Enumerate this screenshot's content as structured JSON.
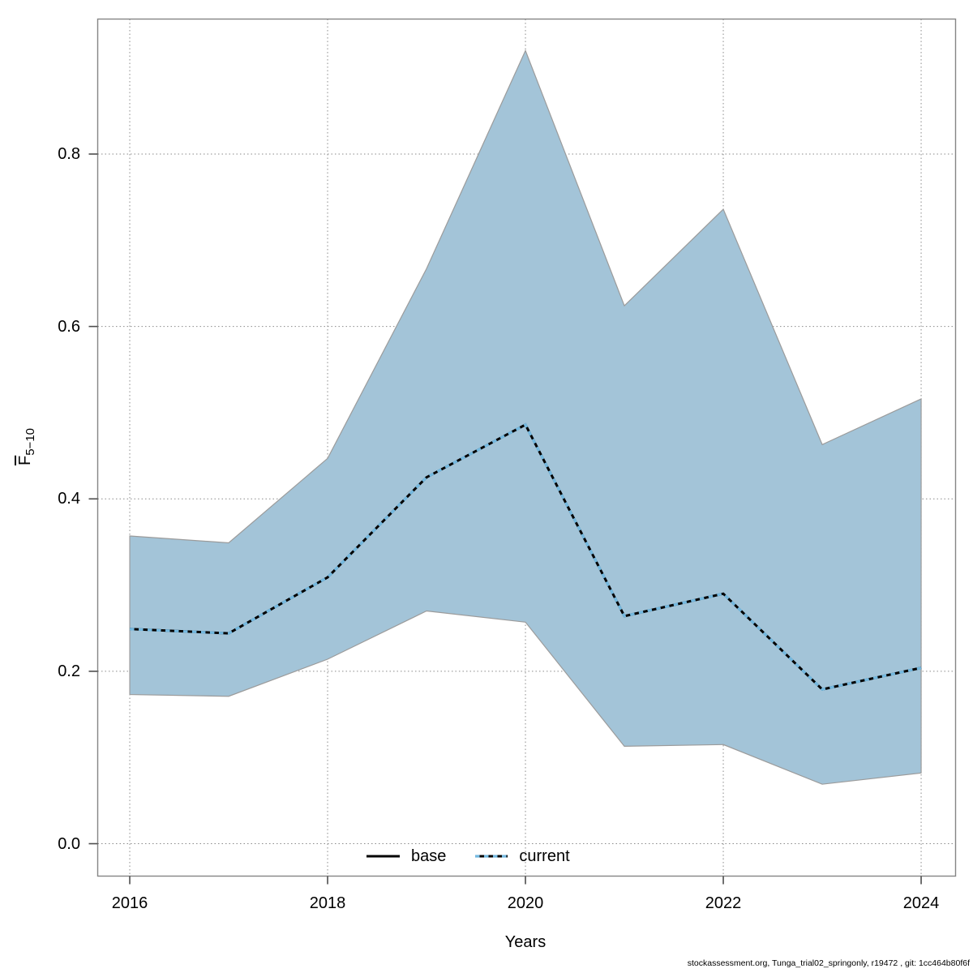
{
  "footer": {
    "text": "stockassessment.org, Tunga_trial02_springonly, r19472 , git: 1cc464b80f6f"
  },
  "chart_data": {
    "type": "area",
    "title": "",
    "xlabel": "Years",
    "ylabel_base": "F",
    "ylabel_subscript": "5−10",
    "x": [
      2016,
      2017,
      2018,
      2019,
      2020,
      2021,
      2022,
      2023,
      2024
    ],
    "series": [
      {
        "name": "base",
        "line": "solid",
        "color": "#000000",
        "values": [
          0.249,
          0.244,
          0.309,
          0.425,
          0.486,
          0.264,
          0.29,
          0.179,
          0.204
        ]
      },
      {
        "name": "current",
        "line": "dotted",
        "color": "#74b9e0",
        "values": [
          0.249,
          0.244,
          0.309,
          0.425,
          0.486,
          0.264,
          0.29,
          0.179,
          0.204
        ]
      }
    ],
    "band": {
      "belongs_to": "current",
      "upper": [
        0.357,
        0.349,
        0.447,
        0.667,
        0.92,
        0.624,
        0.736,
        0.463,
        0.516
      ],
      "lower": [
        0.173,
        0.171,
        0.214,
        0.27,
        0.257,
        0.113,
        0.115,
        0.069,
        0.082
      ]
    },
    "legend": [
      {
        "label": "base",
        "line": "solid"
      },
      {
        "label": "current",
        "line": "dotted"
      }
    ],
    "legend_position": "bottom-center",
    "grid": true,
    "xticks": [
      2016,
      2018,
      2020,
      2022,
      2024
    ],
    "xtick_labels": [
      "2016",
      "2018",
      "2020",
      "2022",
      "2024"
    ],
    "yticks": [
      0.0,
      0.2,
      0.4,
      0.6,
      0.8
    ],
    "ytick_labels": [
      "0.0",
      "0.2",
      "0.4",
      "0.6",
      "0.8"
    ],
    "xlim": [
      2015.676,
      2024.348
    ],
    "ylim": [
      -0.0376,
      0.9566
    ],
    "colors": {
      "band_fill": "#a3c4d8",
      "band_edge": "#9b9b9b",
      "base_line": "#000000",
      "current_line": "#74b9e0",
      "grid": "#8a8a8a",
      "box": "#858585",
      "tick": "#4d4d4d"
    }
  }
}
